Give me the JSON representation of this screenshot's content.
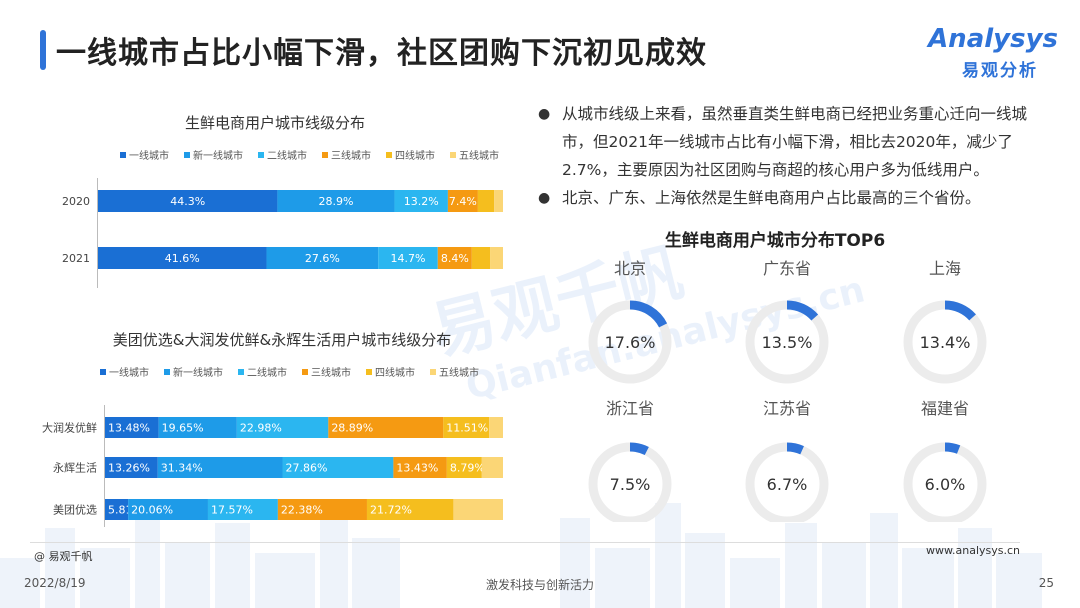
{
  "header": {
    "title": "一线城市占比小幅下滑，社区团购下沉初见成效",
    "logo_en": "Analysys",
    "logo_cn": "易观分析"
  },
  "watermark": {
    "cn": "易观千帆",
    "en": "Qianfan.analysys.cn"
  },
  "colors": [
    "#1a6fd4",
    "#1e9be8",
    "#2bb6f0",
    "#f59a12",
    "#f5be1e",
    "#fbd676"
  ],
  "chart_data": [
    {
      "type": "bar",
      "orientation": "horizontal-stacked-100",
      "title": "生鲜电商用户城市线级分布",
      "legend": [
        "一线城市",
        "新一线城市",
        "二线城市",
        "三线城市",
        "四线城市",
        "五线城市"
      ],
      "categories": [
        "2020",
        "2021"
      ],
      "series": [
        {
          "name": "一线城市",
          "values": [
            44.3,
            41.6
          ]
        },
        {
          "name": "新一线城市",
          "values": [
            28.9,
            27.6
          ]
        },
        {
          "name": "二线城市",
          "values": [
            13.2,
            14.7
          ]
        },
        {
          "name": "三线城市",
          "values": [
            7.4,
            8.4
          ]
        },
        {
          "name": "四线城市",
          "values": [
            4.0,
            4.5
          ]
        },
        {
          "name": "五线城市",
          "values": [
            2.2,
            3.2
          ]
        }
      ],
      "labels": [
        [
          "44.3%",
          "41.6%"
        ],
        [
          "28.9%",
          "27.6%"
        ],
        [
          "13.2%",
          "14.7%"
        ],
        [
          "7.4%",
          "8.4%"
        ],
        [
          "",
          ""
        ],
        [
          "",
          ""
        ]
      ]
    },
    {
      "type": "bar",
      "orientation": "horizontal-stacked-100",
      "title": "美团优选&大润发优鲜&永辉生活用户城市线级分布",
      "legend": [
        "一线城市",
        "新一线城市",
        "二线城市",
        "三线城市",
        "四线城市",
        "五线城市"
      ],
      "categories": [
        "大润发优鲜",
        "永辉生活",
        "美团优选"
      ],
      "series": [
        {
          "name": "一线城市",
          "values": [
            13.48,
            13.26,
            5.81
          ]
        },
        {
          "name": "新一线城市",
          "values": [
            19.65,
            31.34,
            20.06
          ]
        },
        {
          "name": "二线城市",
          "values": [
            22.98,
            27.86,
            17.57
          ]
        },
        {
          "name": "三线城市",
          "values": [
            28.89,
            13.43,
            22.38
          ]
        },
        {
          "name": "四线城市",
          "values": [
            11.51,
            8.79,
            21.72
          ]
        },
        {
          "name": "五线城市",
          "values": [
            3.49,
            5.32,
            12.46
          ]
        }
      ],
      "labels": [
        [
          "13.48%",
          "13.26%",
          "5.81%"
        ],
        [
          "19.65%",
          "31.34%",
          "20.06%"
        ],
        [
          "22.98%",
          "27.86%",
          "17.57%"
        ],
        [
          "28.89%",
          "13.43%",
          "22.38%"
        ],
        [
          "11.51%",
          "8.79%",
          "21.72%"
        ],
        [
          "",
          "",
          ""
        ]
      ]
    },
    {
      "type": "pie",
      "variant": "donut-grid",
      "title": "生鲜电商用户城市分布TOP6",
      "items": [
        {
          "name": "北京",
          "value": 17.6,
          "label": "17.6%"
        },
        {
          "name": "广东省",
          "value": 13.5,
          "label": "13.5%"
        },
        {
          "name": "上海",
          "value": 13.4,
          "label": "13.4%"
        },
        {
          "name": "浙江省",
          "value": 7.5,
          "label": "7.5%"
        },
        {
          "name": "江苏省",
          "value": 6.7,
          "label": "6.7%"
        },
        {
          "name": "福建省",
          "value": 6.0,
          "label": "6.0%"
        }
      ]
    }
  ],
  "bullets": [
    "从城市线级上来看，虽然垂直类生鲜电商已经把业务重心迁向一线城市，但2021年一线城市占比有小幅下滑，相比去2020年，减少了2.7%，主要原因为社区团购与商超的核心用户多为低线用户。",
    "北京、广东、上海依然是生鲜电商用户占比最高的三个省份。"
  ],
  "footer": {
    "source": "@ 易观千帆",
    "website": "www.analysys.cn",
    "date": "2022/8/19",
    "slogan": "激发科技与创新活力",
    "page": "25"
  }
}
